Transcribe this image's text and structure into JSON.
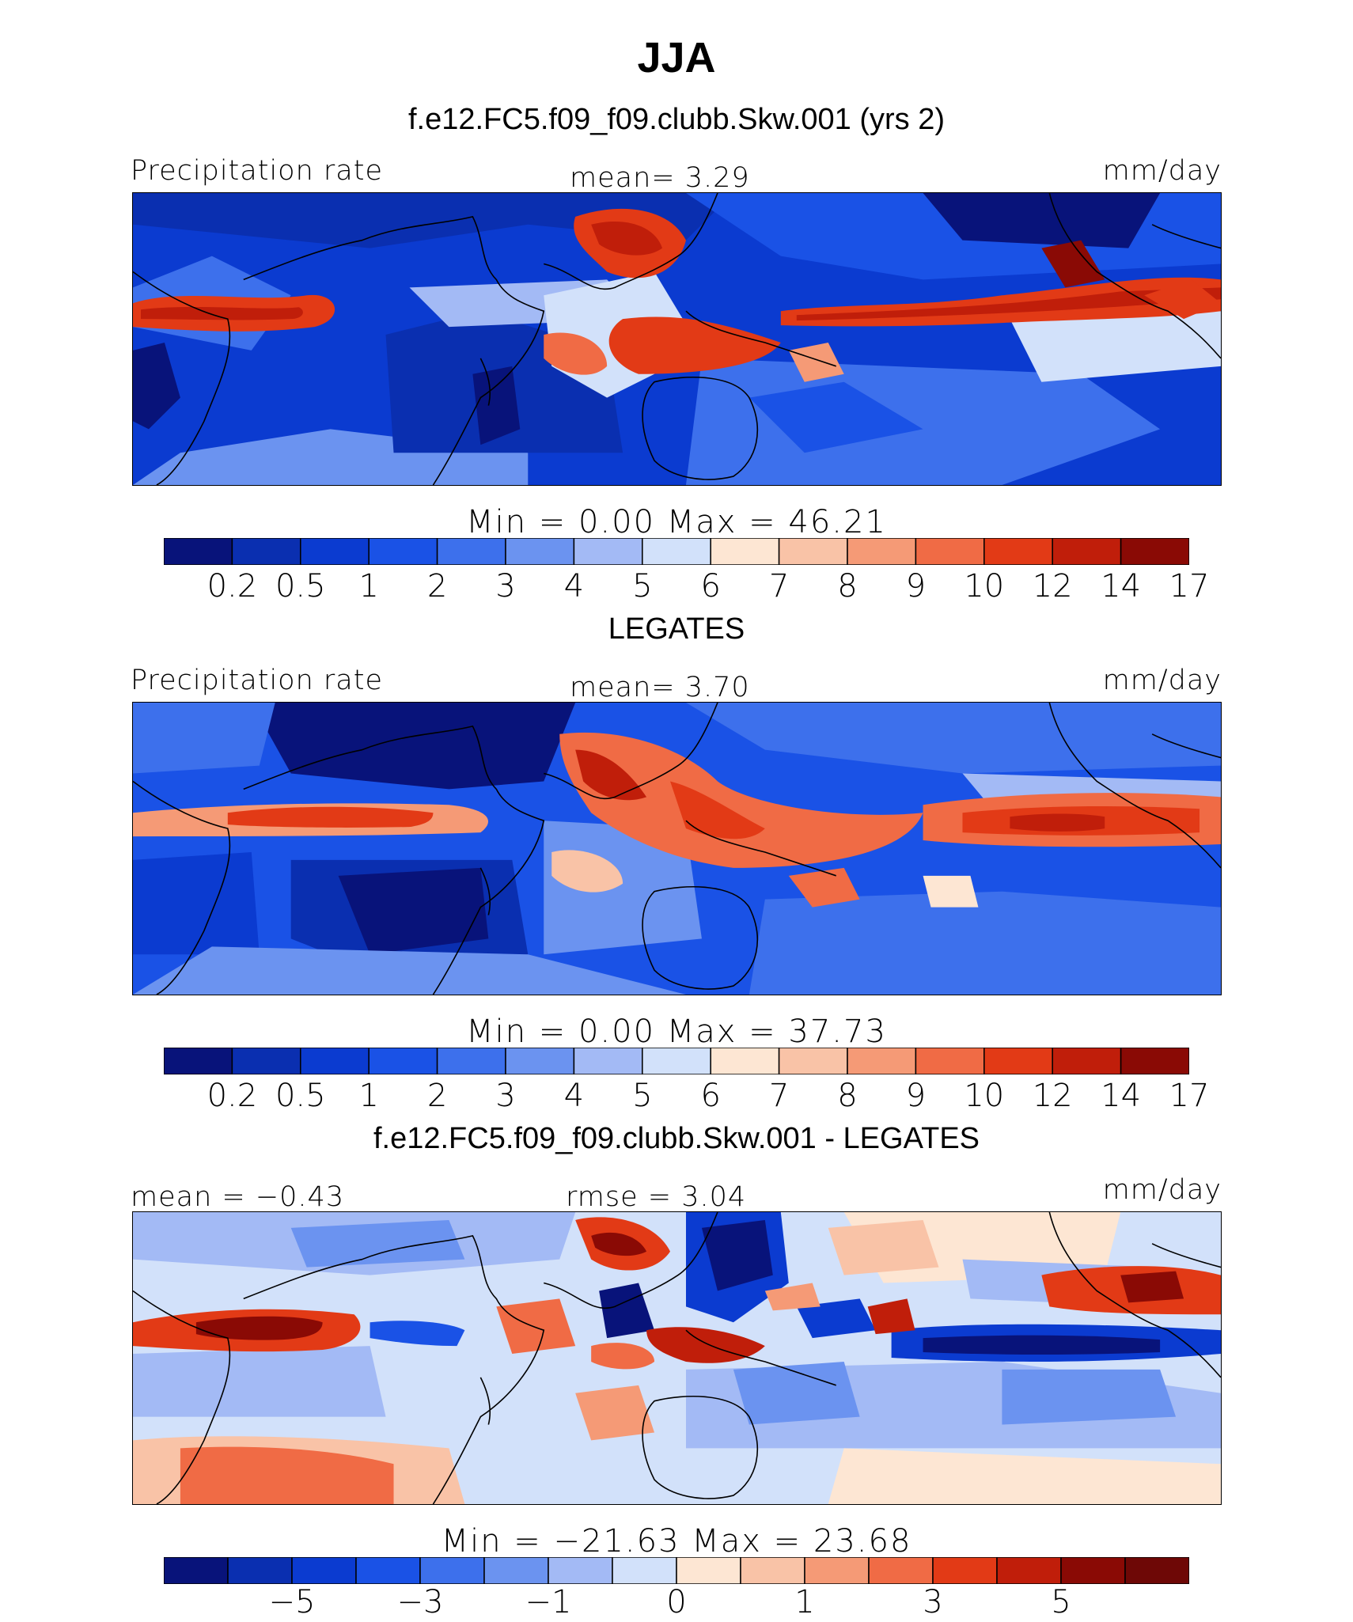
{
  "title": "JJA",
  "panels": [
    {
      "heading": "f.e12.FC5.f09_f09.clubb.Skw.001 (yrs 2)",
      "left_label": "Precipitation rate",
      "center_label": "mean=    3.29",
      "right_label": "mm/day",
      "stat_line": "Min  =     0.00  Max  =    46.21",
      "colorbar_ticks": [
        "0.2",
        "0.5",
        "1",
        "2",
        "3",
        "4",
        "5",
        "6",
        "7",
        "8",
        "9",
        "10",
        "12",
        "14",
        "17"
      ]
    },
    {
      "heading": "LEGATES",
      "left_label": "Precipitation rate",
      "center_label": "mean=    3.70",
      "right_label": "mm/day",
      "stat_line": "Min  =     0.00  Max  =    37.73",
      "colorbar_ticks": [
        "0.2",
        "0.5",
        "1",
        "2",
        "3",
        "4",
        "5",
        "6",
        "7",
        "8",
        "9",
        "10",
        "12",
        "14",
        "17"
      ]
    },
    {
      "heading": "f.e12.FC5.f09_f09.clubb.Skw.001 - LEGATES",
      "left_label": "mean  =   −0.43",
      "center_label": "rmse  =    3.04",
      "right_label": "mm/day",
      "stat_line": "Min  =  −21.63  Max  =    23.68",
      "colorbar_ticks": [
        "−5",
        "−3",
        "−1",
        "0",
        "1",
        "3",
        "5"
      ]
    }
  ],
  "colors": {
    "abs_scale": [
      "#08137a",
      "#0a2fb0",
      "#0b3bd0",
      "#1a52e6",
      "#3d70ec",
      "#6b93f0",
      "#a3baf5",
      "#d2e1fa",
      "#fde6d3",
      "#f9c3a7",
      "#f59a76",
      "#f06b45",
      "#e23a16",
      "#c01e0a",
      "#8a0a05"
    ],
    "diff_scale": [
      "#08137a",
      "#0a2fb0",
      "#0b3bd0",
      "#1a52e6",
      "#3d70ec",
      "#6b93f0",
      "#a3baf5",
      "#d2e1fa",
      "#fde6d3",
      "#f9c3a7",
      "#f59a76",
      "#f06b45",
      "#e23a16",
      "#c01e0a",
      "#8a0a05",
      "#6e0806"
    ]
  }
}
